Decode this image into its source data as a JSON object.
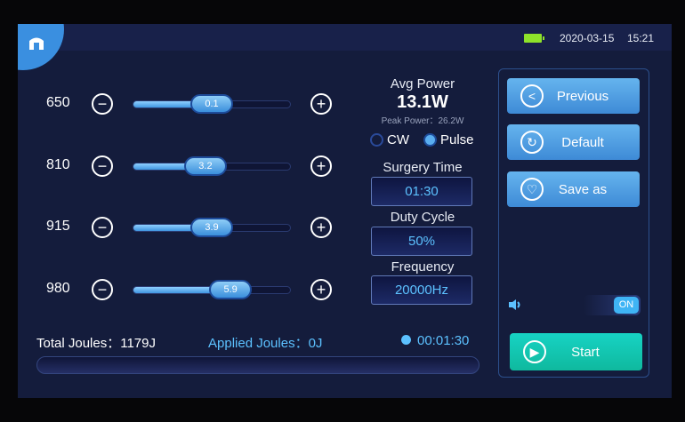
{
  "status": {
    "date": "2020-03-15",
    "time": "15:21",
    "battery_icon": "battery-full-icon",
    "battery_color": "#8ee22a"
  },
  "wavelengths": [
    {
      "label": "650",
      "value": "0.1",
      "fill_percent": 50
    },
    {
      "label": "810",
      "value": "3.2",
      "fill_percent": 46
    },
    {
      "label": "915",
      "value": "3.9",
      "fill_percent": 50
    },
    {
      "label": "980",
      "value": "5.9",
      "fill_percent": 62
    }
  ],
  "power": {
    "avg_label": "Avg Power",
    "avg_value": "13.1W",
    "peak_text": "Peak Power：26.2W"
  },
  "mode": {
    "cw": "CW",
    "pulse": "Pulse",
    "selected": "Pulse"
  },
  "surgery_time": {
    "label": "Surgery Time",
    "value": "01:30"
  },
  "duty_cycle": {
    "label": "Duty Cycle",
    "value": "50%"
  },
  "frequency": {
    "label": "Frequency",
    "value": "20000Hz"
  },
  "buttons": {
    "previous": "Previous",
    "default": "Default",
    "save_as": "Save as",
    "start": "Start"
  },
  "sound": {
    "toggle": "ON"
  },
  "footer": {
    "total_joules": "Total Joules：1179J",
    "applied_joules": "Applied Joules：0J",
    "timer": "00:01:30",
    "progress_percent": 0
  },
  "colors": {
    "accent": "#3a8fe0",
    "start": "#13c7b4",
    "highlight": "#5cc1ff"
  }
}
